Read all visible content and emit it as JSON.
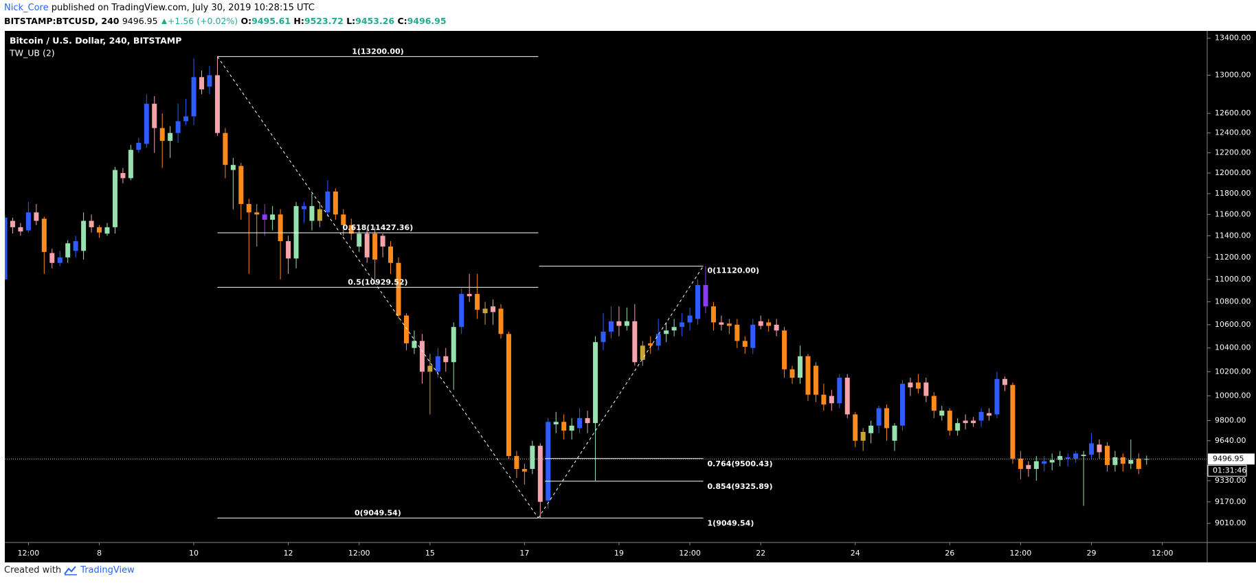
{
  "header": {
    "author": "Nick_Core",
    "published": "published on TradingView.com, July 30, 2019 10:28:15 UTC",
    "symbol": "BITSTAMP:BTCUSD, 240",
    "change": "+1.56 (+0.02%)",
    "open_label": "O:",
    "high_label": "H:",
    "low_label": "L:",
    "close_label": "C:"
  },
  "chart_data": {
    "type": "candlestick",
    "title": "Bitcoin / U.S. Dollar, 240, BITSTAMP",
    "indicator": "TW_UB (2)",
    "log_scale": true,
    "open": [
      11000,
      11540,
      11480,
      11450,
      11620,
      11560,
      11240,
      11150,
      11200,
      11260,
      11260,
      11540,
      11480,
      11420,
      11480,
      12000,
      11950,
      12230,
      12290,
      12700,
      12450,
      12320,
      12400,
      12520,
      12570,
      12980,
      12880,
      13000,
      12400,
      12030,
      12070,
      11700,
      11620,
      11600,
      11550,
      11600,
      11350,
      11190,
      11650,
      11540,
      11650,
      11620,
      11820,
      11600,
      11500,
      11300,
      11420,
      11420,
      11400,
      11300,
      11150,
      10680,
      10400,
      10460,
      10250,
      10200,
      10330,
      10280,
      10580,
      10870,
      10870,
      10740,
      10760,
      10740,
      10520,
      9520,
      9420,
      9420,
      9600,
      9180,
      9770,
      9790,
      9720,
      9740,
      9820,
      9780,
      10450,
      10540,
      10630,
      10590,
      10630,
      10300,
      10440,
      10420,
      10520,
      10550,
      10580,
      10620,
      10650,
      10950,
      10760,
      10620,
      10610,
      10600,
      10460,
      10400,
      10630,
      10620,
      10600,
      10550,
      10220,
      10150,
      10330,
      10250,
      10010,
      10000,
      9940,
      10150,
      9850,
      9640,
      9700,
      9760,
      9900,
      9640,
      9760,
      10110,
      10110,
      10110,
      10000,
      9840,
      9880,
      9720,
      9800,
      9800,
      9800,
      9860,
      9850,
      10140,
      10090,
      9500,
      9450,
      9420,
      9460,
      9470,
      9490,
      9500,
      9500,
      9520,
      9530,
      9610,
      9600,
      9450,
      9510,
      9460,
      9500,
      9495.61
    ],
    "high": [
      11600,
      11570,
      11520,
      11720,
      11700,
      11580,
      11280,
      11260,
      11360,
      11400,
      11620,
      11600,
      11500,
      11520,
      12060,
      12050,
      12280,
      12350,
      12800,
      12780,
      12600,
      12470,
      12700,
      12750,
      13180,
      13050,
      13100,
      13200,
      12450,
      12150,
      12100,
      11750,
      11700,
      11700,
      11680,
      11650,
      11400,
      11720,
      11720,
      11800,
      11720,
      11930,
      11850,
      11650,
      11560,
      11460,
      11460,
      11480,
      11420,
      11350,
      11200,
      10700,
      10550,
      10520,
      10350,
      10400,
      10400,
      10620,
      10920,
      11050,
      11050,
      10800,
      10820,
      10780,
      10540,
      9560,
      9460,
      9640,
      9620,
      9820,
      9870,
      9850,
      9820,
      9900,
      9880,
      10500,
      10700,
      10760,
      10760,
      10750,
      10780,
      10460,
      10500,
      10650,
      10620,
      10650,
      10700,
      10750,
      11000,
      11120,
      10800,
      10680,
      10650,
      10650,
      10500,
      10650,
      10680,
      10650,
      10650,
      10580,
      10250,
      10420,
      10350,
      10280,
      10100,
      10050,
      10180,
      10180,
      9870,
      9740,
      9800,
      9920,
      9930,
      9780,
      10130,
      10150,
      10180,
      10150,
      10030,
      9920,
      9900,
      9820,
      9850,
      9830,
      9900,
      9900,
      10200,
      10160,
      10110,
      9560,
      9480,
      9520,
      9520,
      9540,
      9560,
      9540,
      9560,
      9560,
      9700,
      9650,
      9630,
      9560,
      9540,
      9650,
      9540,
      9523.72
    ],
    "low": [
      10990,
      11420,
      11400,
      11430,
      11500,
      11050,
      11100,
      11120,
      11150,
      11200,
      11180,
      11430,
      11380,
      11400,
      11420,
      11900,
      11930,
      12200,
      12250,
      12200,
      12050,
      12150,
      12300,
      12480,
      12480,
      12800,
      12800,
      12370,
      11950,
      11650,
      11550,
      11050,
      11300,
      11400,
      11450,
      11000,
      11050,
      11100,
      11520,
      11450,
      11480,
      11580,
      11550,
      11400,
      11360,
      11250,
      11150,
      11000,
      11200,
      11050,
      10650,
      10380,
      10350,
      10100,
      9850,
      10150,
      10200,
      10050,
      10520,
      10800,
      10650,
      10600,
      10600,
      10480,
      9500,
      9350,
      9300,
      9380,
      9049.54,
      9120,
      9700,
      9650,
      9650,
      9700,
      9700,
      9330,
      10380,
      10480,
      10500,
      10550,
      10250,
      10250,
      10350,
      10380,
      10450,
      10500,
      10500,
      10550,
      10600,
      10700,
      10550,
      10550,
      10520,
      10400,
      10350,
      10350,
      10560,
      10540,
      10500,
      10150,
      10100,
      10100,
      9960,
      9950,
      9880,
      9880,
      9900,
      9820,
      9590,
      9560,
      9620,
      9700,
      9640,
      9560,
      9720,
      10000,
      10020,
      9950,
      9820,
      9800,
      9680,
      9680,
      9730,
      9750,
      9750,
      9800,
      9820,
      10040,
      9460,
      9340,
      9360,
      9330,
      9400,
      9410,
      9440,
      9440,
      9470,
      9140,
      9500,
      9500,
      9400,
      9400,
      9400,
      9420,
      9380,
      9453.26
    ],
    "close": [
      11570,
      11480,
      11440,
      11620,
      11540,
      11250,
      11150,
      11200,
      11330,
      11350,
      11540,
      11480,
      11430,
      11480,
      12030,
      11950,
      12230,
      12300,
      12700,
      12450,
      12320,
      12400,
      12520,
      12570,
      12980,
      12850,
      13000,
      12400,
      12080,
      12080,
      11700,
      11620,
      11600,
      11550,
      11600,
      11350,
      11190,
      11680,
      11680,
      11680,
      11540,
      11820,
      11600,
      11500,
      11420,
      11420,
      11200,
      11180,
      11300,
      11150,
      10680,
      10440,
      10460,
      10200,
      10200,
      10330,
      10280,
      10580,
      10870,
      10850,
      10730,
      10700,
      10710,
      10520,
      9520,
      9420,
      9400,
      9600,
      9170,
      9790,
      9790,
      9720,
      9760,
      9820,
      9780,
      10450,
      10540,
      10630,
      10590,
      10630,
      10280,
      10420,
      10420,
      10520,
      10550,
      10580,
      10620,
      10680,
      10950,
      10760,
      10620,
      10600,
      10590,
      10460,
      10410,
      10600,
      10590,
      10590,
      10550,
      10220,
      10150,
      10330,
      10010,
      10010,
      9930,
      9940,
      10150,
      9850,
      9640,
      9710,
      9760,
      9900,
      9740,
      9760,
      10100,
      10070,
      10060,
      10000,
      9880,
      9880,
      9720,
      9780,
      9780,
      9780,
      9870,
      9840,
      10140,
      10090,
      9500,
      9420,
      9420,
      9480,
      9480,
      9490,
      9520,
      9510,
      9540,
      9530,
      9620,
      9550,
      9450,
      9510,
      9460,
      9490,
      9420,
      9496.95
    ],
    "colors": [
      "#2f5cff",
      "#f7a3ab",
      "#f7a3ab",
      "#2f5cff",
      "#f7a3ab",
      "#ff8a1c",
      "#f7a3ab",
      "#2f5cff",
      "#97e0b0",
      "#2f5cff",
      "#97e0b0",
      "#f7a3ab",
      "#ff8a1c",
      "#97e0b0",
      "#97e0b0",
      "#f7a3ab",
      "#97e0b0",
      "#2f5cff",
      "#2f5cff",
      "#f7a3ab",
      "#ff8a1c",
      "#97e0b0",
      "#2f5cff",
      "#2f5cff",
      "#2f5cff",
      "#f7a3ab",
      "#2f5cff",
      "#f7a3ab",
      "#ff8a1c",
      "#97e0b0",
      "#ff8a1c",
      "#ff8a1c",
      "#ff8a1c",
      "#8c3cf0",
      "#97e0b0",
      "#ff8a1c",
      "#f7a3ab",
      "#97e0b0",
      "#2f5cff",
      "#97e0b0",
      "#c9a437",
      "#2f5cff",
      "#ff8a1c",
      "#ff8a1c",
      "#ff8a1c",
      "#97e0b0",
      "#f7a3ab",
      "#ff8a1c",
      "#f7a3ab",
      "#ff8a1c",
      "#ff8a1c",
      "#ff8a1c",
      "#97e0b0",
      "#f7a3ab",
      "#c9a437",
      "#2f5cff",
      "#f7a3ab",
      "#97e0b0",
      "#2f5cff",
      "#f7a3ab",
      "#ff8a1c",
      "#c9a437",
      "#f7a3ab",
      "#ff8a1c",
      "#ff8a1c",
      "#ff8a1c",
      "#ff8a1c",
      "#97e0b0",
      "#f7a3ab",
      "#2f5cff",
      "#97e0b0",
      "#ff8a1c",
      "#97e0b0",
      "#2f5cff",
      "#f7a3ab",
      "#97e0b0",
      "#2f5cff",
      "#2f5cff",
      "#f7a3ab",
      "#97e0b0",
      "#f7a3ab",
      "#c9a437",
      "#ff8a1c",
      "#2f5cff",
      "#97e0b0",
      "#97e0b0",
      "#2f5cff",
      "#2f5cff",
      "#2f5cff",
      "#8c3cf0",
      "#ff8a1c",
      "#f7a3ab",
      "#ff8a1c",
      "#ff8a1c",
      "#ff8a1c",
      "#2f5cff",
      "#f7a3ab",
      "#ff8a1c",
      "#f7a3ab",
      "#ff8a1c",
      "#ff8a1c",
      "#97e0b0",
      "#ff8a1c",
      "#ff8a1c",
      "#ff8a1c",
      "#f7a3ab",
      "#2f5cff",
      "#f7a3ab",
      "#ff8a1c",
      "#c9a437",
      "#97e0b0",
      "#2f5cff",
      "#ff8a1c",
      "#97e0b0",
      "#2f5cff",
      "#f7a3ab",
      "#ff8a1c",
      "#f7a3ab",
      "#ff8a1c",
      "#97e0b0",
      "#ff8a1c",
      "#97e0b0",
      "#f7a3ab",
      "#f7a3ab",
      "#2f5cff",
      "#f7a3ab",
      "#2f5cff",
      "#f7a3ab",
      "#ff8a1c",
      "#ff8a1c",
      "#f7a3ab",
      "#97e0b0",
      "#2f5cff",
      "#97e0b0",
      "#97e0b0",
      "#2f5cff",
      "#2f5cff",
      "#97e0b0",
      "#2f5cff",
      "#f7a3ab",
      "#ff8a1c",
      "#97e0b0",
      "#ff8a1c",
      "#97e0b0",
      "#ff8a1c",
      "#97e0b0"
    ],
    "xlim": [
      0,
      152.7
    ],
    "xticks": [
      {
        "value": 3,
        "label": "12:00"
      },
      {
        "value": 12,
        "label": "8"
      },
      {
        "value": 24,
        "label": "10"
      },
      {
        "value": 36,
        "label": "12"
      },
      {
        "value": 45,
        "label": "12:00"
      },
      {
        "value": 54,
        "label": "15"
      },
      {
        "value": 66,
        "label": "17"
      },
      {
        "value": 78,
        "label": "19"
      },
      {
        "value": 87,
        "label": "12:00"
      },
      {
        "value": 96,
        "label": "22"
      },
      {
        "value": 108,
        "label": "24"
      },
      {
        "value": 120,
        "label": "26"
      },
      {
        "value": 129,
        "label": "12:00"
      },
      {
        "value": 138,
        "label": "29"
      },
      {
        "value": 147,
        "label": "12:00"
      }
    ],
    "ylim": [
      8870,
      13480
    ],
    "yticks": [
      {
        "value": 9010,
        "label": "9010.00"
      },
      {
        "value": 9170,
        "label": "9170.00"
      },
      {
        "value": 9330,
        "label": "9330.00"
      },
      {
        "value": 9640,
        "label": "9640.00"
      },
      {
        "value": 9800,
        "label": "9800.00"
      },
      {
        "value": 10000,
        "label": "10000.00"
      },
      {
        "value": 10200,
        "label": "10200.00"
      },
      {
        "value": 10400,
        "label": "10400.00"
      },
      {
        "value": 10600,
        "label": "10600.00"
      },
      {
        "value": 10800,
        "label": "10800.00"
      },
      {
        "value": 11000,
        "label": "11000.00"
      },
      {
        "value": 11200,
        "label": "11200.00"
      },
      {
        "value": 11400,
        "label": "11400.00"
      },
      {
        "value": 11600,
        "label": "11600.00"
      },
      {
        "value": 11800,
        "label": "11800.00"
      },
      {
        "value": 12000,
        "label": "12000.00"
      },
      {
        "value": 12200,
        "label": "12200.00"
      },
      {
        "value": 12400,
        "label": "12400.00"
      },
      {
        "value": 12600,
        "label": "12600.00"
      },
      {
        "value": 13000,
        "label": "13000.00"
      },
      {
        "value": 13400,
        "label": "13400.00"
      }
    ],
    "countdown": "01:31:46",
    "fib_retracement": [
      {
        "value": 13200,
        "label": "1(13200.00)"
      },
      {
        "value": 11427.36,
        "label": "0.618(11427.36)"
      },
      {
        "value": 10929.52,
        "label": "0.5(10929.52)"
      },
      {
        "value": 9049.54,
        "label": "0(9049.54)"
      }
    ],
    "fib_extension": [
      {
        "value": 11120,
        "label": "0(11120.00)"
      },
      {
        "value": 9500.43,
        "label": "0.764(9500.43)"
      },
      {
        "value": 9325.89,
        "label": "0.854(9325.89)"
      },
      {
        "value": 9049.54,
        "label": "1(9049.54)"
      }
    ]
  },
  "footer": {
    "created": "Created with",
    "brand": "TradingView"
  }
}
